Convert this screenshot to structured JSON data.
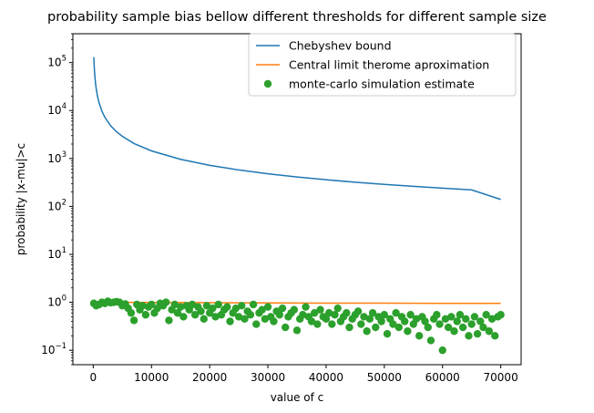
{
  "chart_data": {
    "type": "line",
    "title": "probability sample bias bellow different thresholds for different sample size",
    "xlabel": "value of c",
    "ylabel": "probability |x-mu|>c",
    "xlim": [
      -3500,
      73500
    ],
    "ylim": [
      0.05,
      400000
    ],
    "yscale": "log",
    "grid": false,
    "legend_position": "top-right",
    "x_ticks": [
      {
        "value": 0,
        "label": "0"
      },
      {
        "value": 10000,
        "label": "10000"
      },
      {
        "value": 20000,
        "label": "20000"
      },
      {
        "value": 30000,
        "label": "30000"
      },
      {
        "value": 40000,
        "label": "40000"
      },
      {
        "value": 50000,
        "label": "50000"
      },
      {
        "value": 60000,
        "label": "60000"
      },
      {
        "value": 70000,
        "label": "70000"
      }
    ],
    "y_ticks": [
      {
        "value": 0.1,
        "base": "10",
        "exp": "−1"
      },
      {
        "value": 1,
        "base": "10",
        "exp": "0"
      },
      {
        "value": 10,
        "base": "10",
        "exp": "1"
      },
      {
        "value": 100,
        "base": "10",
        "exp": "2"
      },
      {
        "value": 1000,
        "base": "10",
        "exp": "3"
      },
      {
        "value": 10000,
        "base": "10",
        "exp": "4"
      },
      {
        "value": 100000,
        "base": "10",
        "exp": "5"
      }
    ],
    "series": [
      {
        "name": "Chebyshev bound",
        "kind": "line",
        "color": "#1f77b4",
        "x": [
          100,
          150,
          200,
          300,
          400,
          500,
          700,
          1000,
          1500,
          2000,
          3000,
          4000,
          5000,
          7000,
          10000,
          15000,
          20000,
          25000,
          30000,
          35000,
          40000,
          45000,
          50000,
          55000,
          60000,
          65000,
          70000
        ],
        "y": [
          130000,
          92000,
          70000,
          48000,
          36000,
          29000,
          20500,
          14500,
          9600,
          7200,
          4800,
          3600,
          2900,
          2050,
          1440,
          960,
          720,
          576,
          480,
          411,
          360,
          320,
          288,
          262,
          240,
          221,
          140
        ]
      },
      {
        "name": "Central limit therome aproximation",
        "kind": "line",
        "color": "#ff7f0e",
        "x": [
          100,
          5000,
          10000,
          20000,
          30000,
          40000,
          50000,
          60000,
          70000
        ],
        "y": [
          1.0,
          1.0,
          0.99,
          0.98,
          0.97,
          0.96,
          0.96,
          0.95,
          0.95
        ]
      },
      {
        "name": "monte-carlo simulation estimate",
        "kind": "scatter",
        "color": "#2ca02c",
        "x": [
          100,
          500,
          1000,
          1500,
          2000,
          2500,
          3000,
          3500,
          4000,
          4500,
          5000,
          5500,
          6000,
          6500,
          7000,
          7500,
          8000,
          8500,
          9000,
          9500,
          10000,
          10500,
          11000,
          11500,
          12000,
          12500,
          13000,
          13500,
          14000,
          14500,
          15000,
          15500,
          16000,
          16500,
          17000,
          17500,
          18000,
          18500,
          19000,
          19500,
          20000,
          20500,
          21000,
          21500,
          22000,
          22500,
          23000,
          23500,
          24000,
          24500,
          25000,
          25500,
          26000,
          26500,
          27000,
          27500,
          28000,
          28500,
          29000,
          29500,
          30000,
          30500,
          31000,
          31500,
          32000,
          32500,
          33000,
          33500,
          34000,
          34500,
          35000,
          35500,
          36000,
          36500,
          37000,
          37500,
          38000,
          38500,
          39000,
          39500,
          40000,
          40500,
          41000,
          41500,
          42000,
          42500,
          43000,
          43500,
          44000,
          44500,
          45000,
          45500,
          46000,
          46500,
          47000,
          47500,
          48000,
          48500,
          49000,
          49500,
          50000,
          50500,
          51000,
          51500,
          52000,
          52500,
          53000,
          53500,
          54000,
          54500,
          55000,
          55500,
          56000,
          56500,
          57000,
          57500,
          58000,
          58500,
          59000,
          59500,
          60000,
          60500,
          61000,
          61500,
          62000,
          62500,
          63000,
          63500,
          64000,
          64500,
          65000,
          65500,
          66000,
          66500,
          67000,
          67500,
          68000,
          68500,
          69000,
          69500,
          70000
        ],
        "y": [
          0.95,
          0.85,
          0.9,
          1.0,
          0.95,
          1.05,
          0.98,
          1.0,
          1.03,
          1.0,
          0.85,
          0.92,
          0.75,
          0.6,
          0.42,
          0.9,
          0.7,
          0.85,
          0.55,
          0.8,
          0.9,
          0.6,
          0.75,
          0.95,
          0.85,
          1.0,
          0.42,
          0.7,
          0.9,
          0.6,
          0.8,
          0.5,
          0.85,
          0.7,
          0.9,
          0.55,
          0.8,
          0.65,
          0.45,
          0.85,
          0.6,
          0.75,
          0.5,
          0.9,
          0.55,
          0.7,
          0.8,
          0.4,
          0.6,
          0.75,
          0.5,
          0.85,
          0.45,
          0.65,
          0.55,
          0.9,
          0.35,
          0.6,
          0.7,
          0.45,
          0.8,
          0.5,
          0.4,
          0.65,
          0.55,
          0.75,
          0.3,
          0.5,
          0.6,
          0.7,
          0.26,
          0.45,
          0.55,
          0.8,
          0.5,
          0.4,
          0.6,
          0.35,
          0.7,
          0.5,
          0.45,
          0.6,
          0.35,
          0.55,
          0.75,
          0.4,
          0.5,
          0.6,
          0.3,
          0.45,
          0.55,
          0.65,
          0.35,
          0.5,
          0.25,
          0.45,
          0.6,
          0.3,
          0.5,
          0.4,
          0.55,
          0.22,
          0.45,
          0.35,
          0.6,
          0.3,
          0.5,
          0.4,
          0.25,
          0.55,
          0.35,
          0.45,
          0.2,
          0.5,
          0.4,
          0.3,
          0.16,
          0.45,
          0.55,
          0.35,
          0.1,
          0.45,
          0.3,
          0.5,
          0.25,
          0.4,
          0.55,
          0.3,
          0.45,
          0.2,
          0.35,
          0.5,
          0.22,
          0.4,
          0.3,
          0.55,
          0.25,
          0.45,
          0.2,
          0.5,
          0.55
        ]
      }
    ]
  }
}
